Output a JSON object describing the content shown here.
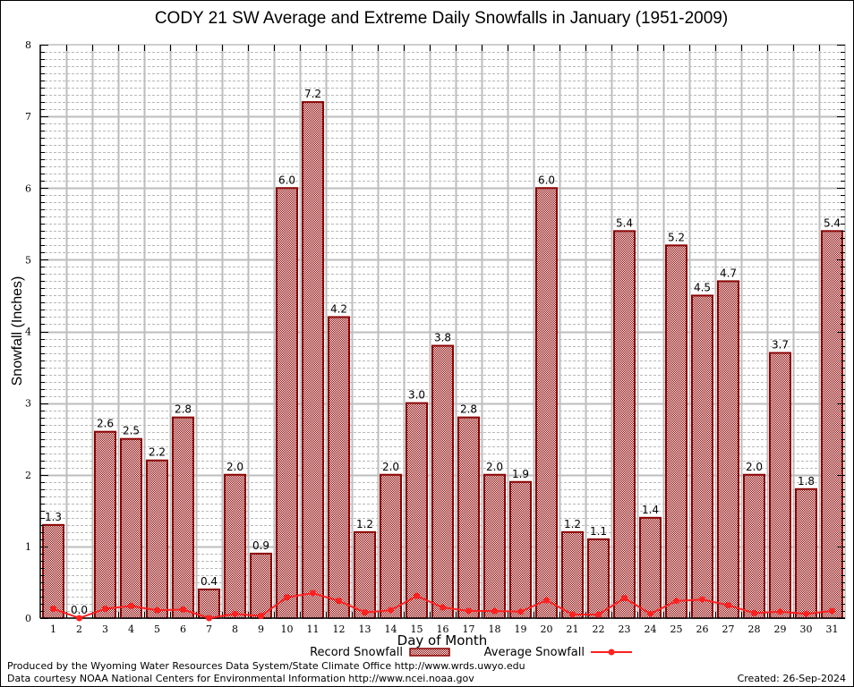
{
  "chart_data": {
    "type": "bar",
    "title": "CODY 21 SW Average and Extreme Daily Snowfalls in January (1951-2009)",
    "xlabel": "Day of Month",
    "ylabel": "Snowfall (Inches)",
    "ylim": [
      0,
      8
    ],
    "yticks": [
      "0",
      "1",
      "2",
      "3",
      "4",
      "5",
      "6",
      "7",
      "8"
    ],
    "grid": true,
    "legend_position": "bottom-center",
    "categories": [
      "1",
      "2",
      "3",
      "4",
      "5",
      "6",
      "7",
      "8",
      "9",
      "10",
      "11",
      "12",
      "13",
      "14",
      "15",
      "16",
      "17",
      "18",
      "19",
      "20",
      "21",
      "22",
      "23",
      "24",
      "25",
      "26",
      "27",
      "28",
      "29",
      "30",
      "31"
    ],
    "series": [
      {
        "name": "Record Snowfall",
        "type": "bar",
        "color": "#8b0000",
        "values": [
          1.3,
          0.0,
          2.6,
          2.5,
          2.2,
          2.8,
          0.4,
          2.0,
          0.9,
          6.0,
          7.2,
          4.2,
          1.2,
          2.0,
          3.0,
          3.8,
          2.8,
          2.0,
          1.9,
          6.0,
          1.2,
          1.1,
          5.4,
          1.4,
          5.2,
          4.5,
          4.7,
          2.0,
          3.7,
          1.8,
          5.4
        ],
        "labels": [
          "1.3",
          "0.0",
          "2.6",
          "2.5",
          "2.2",
          "2.8",
          "0.4",
          "2.0",
          "0.9",
          "6.0",
          "7.2",
          "4.2",
          "1.2",
          "2.0",
          "3.0",
          "3.8",
          "2.8",
          "2.0",
          "1.9",
          "6.0",
          "1.2",
          "1.1",
          "5.4",
          "1.4",
          "5.2",
          "4.5",
          "4.7",
          "2.0",
          "3.7",
          "1.8",
          "5.4"
        ]
      },
      {
        "name": "Average Snowfall",
        "type": "line",
        "color": "#ff2020",
        "values": [
          0.13,
          0.0,
          0.13,
          0.17,
          0.11,
          0.12,
          0.0,
          0.06,
          0.03,
          0.29,
          0.35,
          0.24,
          0.08,
          0.11,
          0.31,
          0.15,
          0.1,
          0.1,
          0.09,
          0.25,
          0.05,
          0.05,
          0.28,
          0.06,
          0.24,
          0.26,
          0.18,
          0.07,
          0.09,
          0.06,
          0.1
        ]
      }
    ]
  },
  "footer": {
    "line1": "Produced by the Wyoming Water Resources Data System/State Climate Office http://www.wrds.uwyo.edu",
    "line2": "Data courtesy NOAA National Centers for Environmental Information http://www.ncei.noaa.gov",
    "created": "Created:  26-Sep-2024"
  }
}
